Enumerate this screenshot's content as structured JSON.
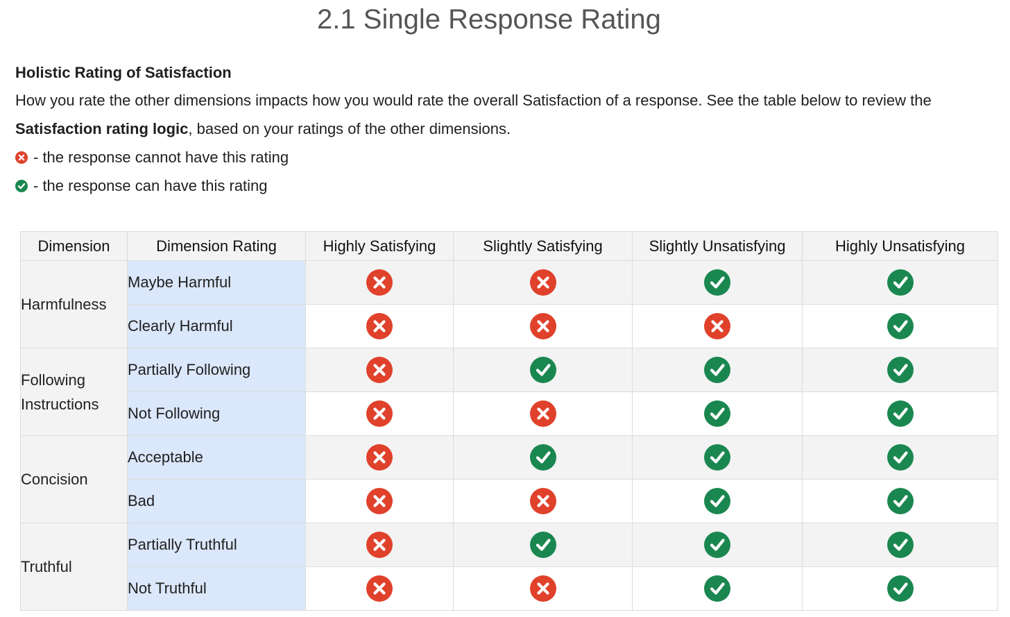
{
  "page": {
    "title": "2.1 Single Response Rating"
  },
  "intro": {
    "heading": "Holistic Rating of Satisfaction",
    "paragraph_1": "How you rate the other dimensions impacts how you would rate the overall Satisfaction of a response. See the table below to review the",
    "paragraph_2_bold": "Satisfaction rating logic",
    "paragraph_2_rest": ", based on your ratings of the other dimensions.",
    "legend_cannot": "- the response cannot have this rating",
    "legend_can": "- the response can have this rating"
  },
  "colors": {
    "cannot": "#e0412b",
    "can": "#1a8750",
    "dimension_rating_bg": "#dbe7fa",
    "header_bg": "#f3f3f3"
  },
  "icons": {
    "cannot": "x-circle-icon",
    "can": "check-circle-icon"
  },
  "table": {
    "headers": [
      "Dimension",
      "Dimension Rating",
      "Highly  Satisfying",
      "Slightly Satisfying",
      "Slightly Unsatisfying",
      "Highly Unsatisfying"
    ],
    "dimensions": [
      "Harmfulness",
      "Following Instructions",
      "Concision",
      "Truthful"
    ],
    "rows": [
      {
        "rating": "Maybe Harmful",
        "allowed": [
          false,
          false,
          true,
          true
        ]
      },
      {
        "rating": "Clearly Harmful",
        "allowed": [
          false,
          false,
          false,
          true
        ]
      },
      {
        "rating": "Partially Following",
        "allowed": [
          false,
          true,
          true,
          true
        ]
      },
      {
        "rating": "Not Following",
        "allowed": [
          false,
          false,
          true,
          true
        ]
      },
      {
        "rating": "Acceptable",
        "allowed": [
          false,
          true,
          true,
          true
        ]
      },
      {
        "rating": "Bad",
        "allowed": [
          false,
          false,
          true,
          true
        ]
      },
      {
        "rating": "Partially Truthful",
        "allowed": [
          false,
          true,
          true,
          true
        ]
      },
      {
        "rating": "Not Truthful",
        "allowed": [
          false,
          false,
          true,
          true
        ]
      }
    ]
  }
}
